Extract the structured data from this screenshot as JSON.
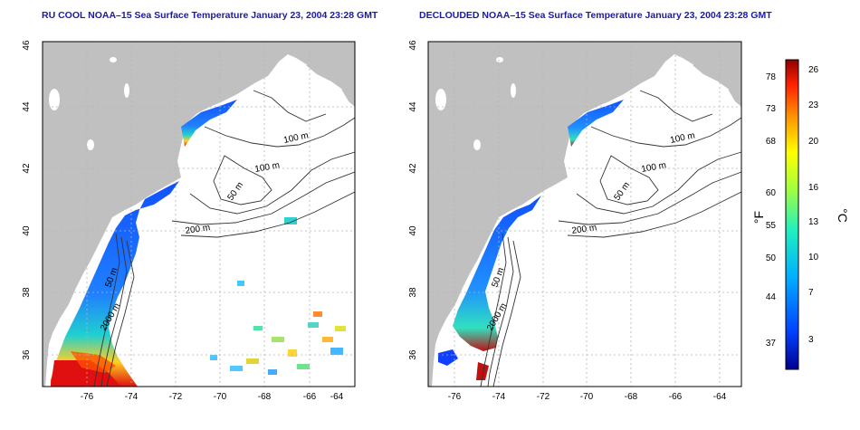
{
  "left_panel": {
    "title": "RU COOL NOAA–15 Sea Surface Temperature January 23, 2004 23:28 GMT"
  },
  "right_panel": {
    "title": "DECLOUDED NOAA–15 Sea Surface Temperature January 23, 2004 23:28 GMT"
  },
  "axes": {
    "x_ticks": [
      "-76",
      "-74",
      "-72",
      "-70",
      "-68",
      "-66",
      "-64"
    ],
    "y_ticks": [
      "36",
      "38",
      "40",
      "42",
      "44",
      "46"
    ]
  },
  "contour_labels": [
    "100 m",
    "100 m",
    "50 m",
    "200 m",
    "50 m",
    "2000 m"
  ],
  "colorbar": {
    "f_label": "°F",
    "c_label": "°C",
    "f_ticks": [
      "78",
      "73",
      "68",
      "60",
      "55",
      "50",
      "44",
      "37"
    ],
    "c_ticks": [
      "26",
      "23",
      "20",
      "16",
      "13",
      "10",
      "7",
      "3"
    ]
  },
  "colors": {
    "land": "#c0c0c0",
    "title": "#1a1aa8",
    "grid": "#b4b4b4"
  }
}
